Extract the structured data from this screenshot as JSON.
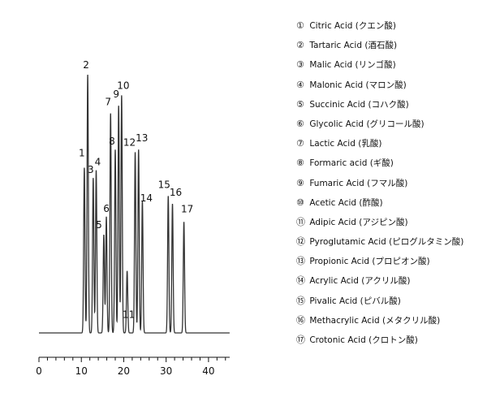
{
  "chart_data": {
    "type": "line",
    "title": "",
    "xlabel": "",
    "ylabel": "",
    "xlim": [
      0,
      45
    ],
    "xticks": [
      0,
      10,
      20,
      30,
      40
    ],
    "x_minor_step": 2,
    "baseline_start": 0,
    "grid": false,
    "legend_position": "right",
    "color": "#333333",
    "peaks": [
      {
        "label": "1",
        "x": 10.7,
        "y": 0.64
      },
      {
        "label": "2",
        "x": 11.5,
        "y": 1.0
      },
      {
        "label": "3",
        "x": 12.8,
        "y": 0.6
      },
      {
        "label": "4",
        "x": 13.5,
        "y": 0.63
      },
      {
        "label": "5",
        "x": 15.3,
        "y": 0.38
      },
      {
        "label": "6",
        "x": 15.9,
        "y": 0.45
      },
      {
        "label": "7",
        "x": 16.9,
        "y": 0.85
      },
      {
        "label": "8",
        "x": 18.0,
        "y": 0.71
      },
      {
        "label": "9",
        "x": 18.8,
        "y": 0.88
      },
      {
        "label": "10",
        "x": 19.5,
        "y": 0.92
      },
      {
        "label": "11",
        "x": 20.8,
        "y": 0.24
      },
      {
        "label": "12",
        "x": 22.7,
        "y": 0.7
      },
      {
        "label": "13",
        "x": 23.5,
        "y": 0.71
      },
      {
        "label": "14",
        "x": 24.4,
        "y": 0.51
      },
      {
        "label": "15",
        "x": 30.5,
        "y": 0.53
      },
      {
        "label": "16",
        "x": 31.5,
        "y": 0.5
      },
      {
        "label": "17",
        "x": 34.2,
        "y": 0.43
      }
    ]
  },
  "legend": [
    {
      "num": "①",
      "text": "Citric Acid (クエン酸)"
    },
    {
      "num": "②",
      "text": "Tartaric Acid (酒石酸)"
    },
    {
      "num": "③",
      "text": "Malic Acid (リンゴ酸)"
    },
    {
      "num": "④",
      "text": "Malonic Acid (マロン酸)"
    },
    {
      "num": "⑤",
      "text": "Succinic Acid (コハク酸)"
    },
    {
      "num": "⑥",
      "text": "Glycolic Acid (グリコール酸)"
    },
    {
      "num": "⑦",
      "text": "Lactic Acid (乳酸)"
    },
    {
      "num": "⑧",
      "text": "Formaric acid (ギ酸)"
    },
    {
      "num": "⑨",
      "text": "Fumaric Acid (フマル酸)"
    },
    {
      "num": "⑩",
      "text": "Acetic Acid (酢酸)"
    },
    {
      "num": "⑪",
      "text": "Adipic Acid (アジピン酸)"
    },
    {
      "num": "⑫",
      "text": "Pyroglutamic Acid (ピログルタミン酸)"
    },
    {
      "num": "⑬",
      "text": "Propionic Acid (プロピオン酸)"
    },
    {
      "num": "⑭",
      "text": "Acrylic Acid (アクリル酸)"
    },
    {
      "num": "⑮",
      "text": "Pivalic Acid (ピバル酸)"
    },
    {
      "num": "⑯",
      "text": "Methacrylic Acid (メタクリル酸)"
    },
    {
      "num": "⑰",
      "text": "Crotonic Acid (クロトン酸)"
    }
  ]
}
